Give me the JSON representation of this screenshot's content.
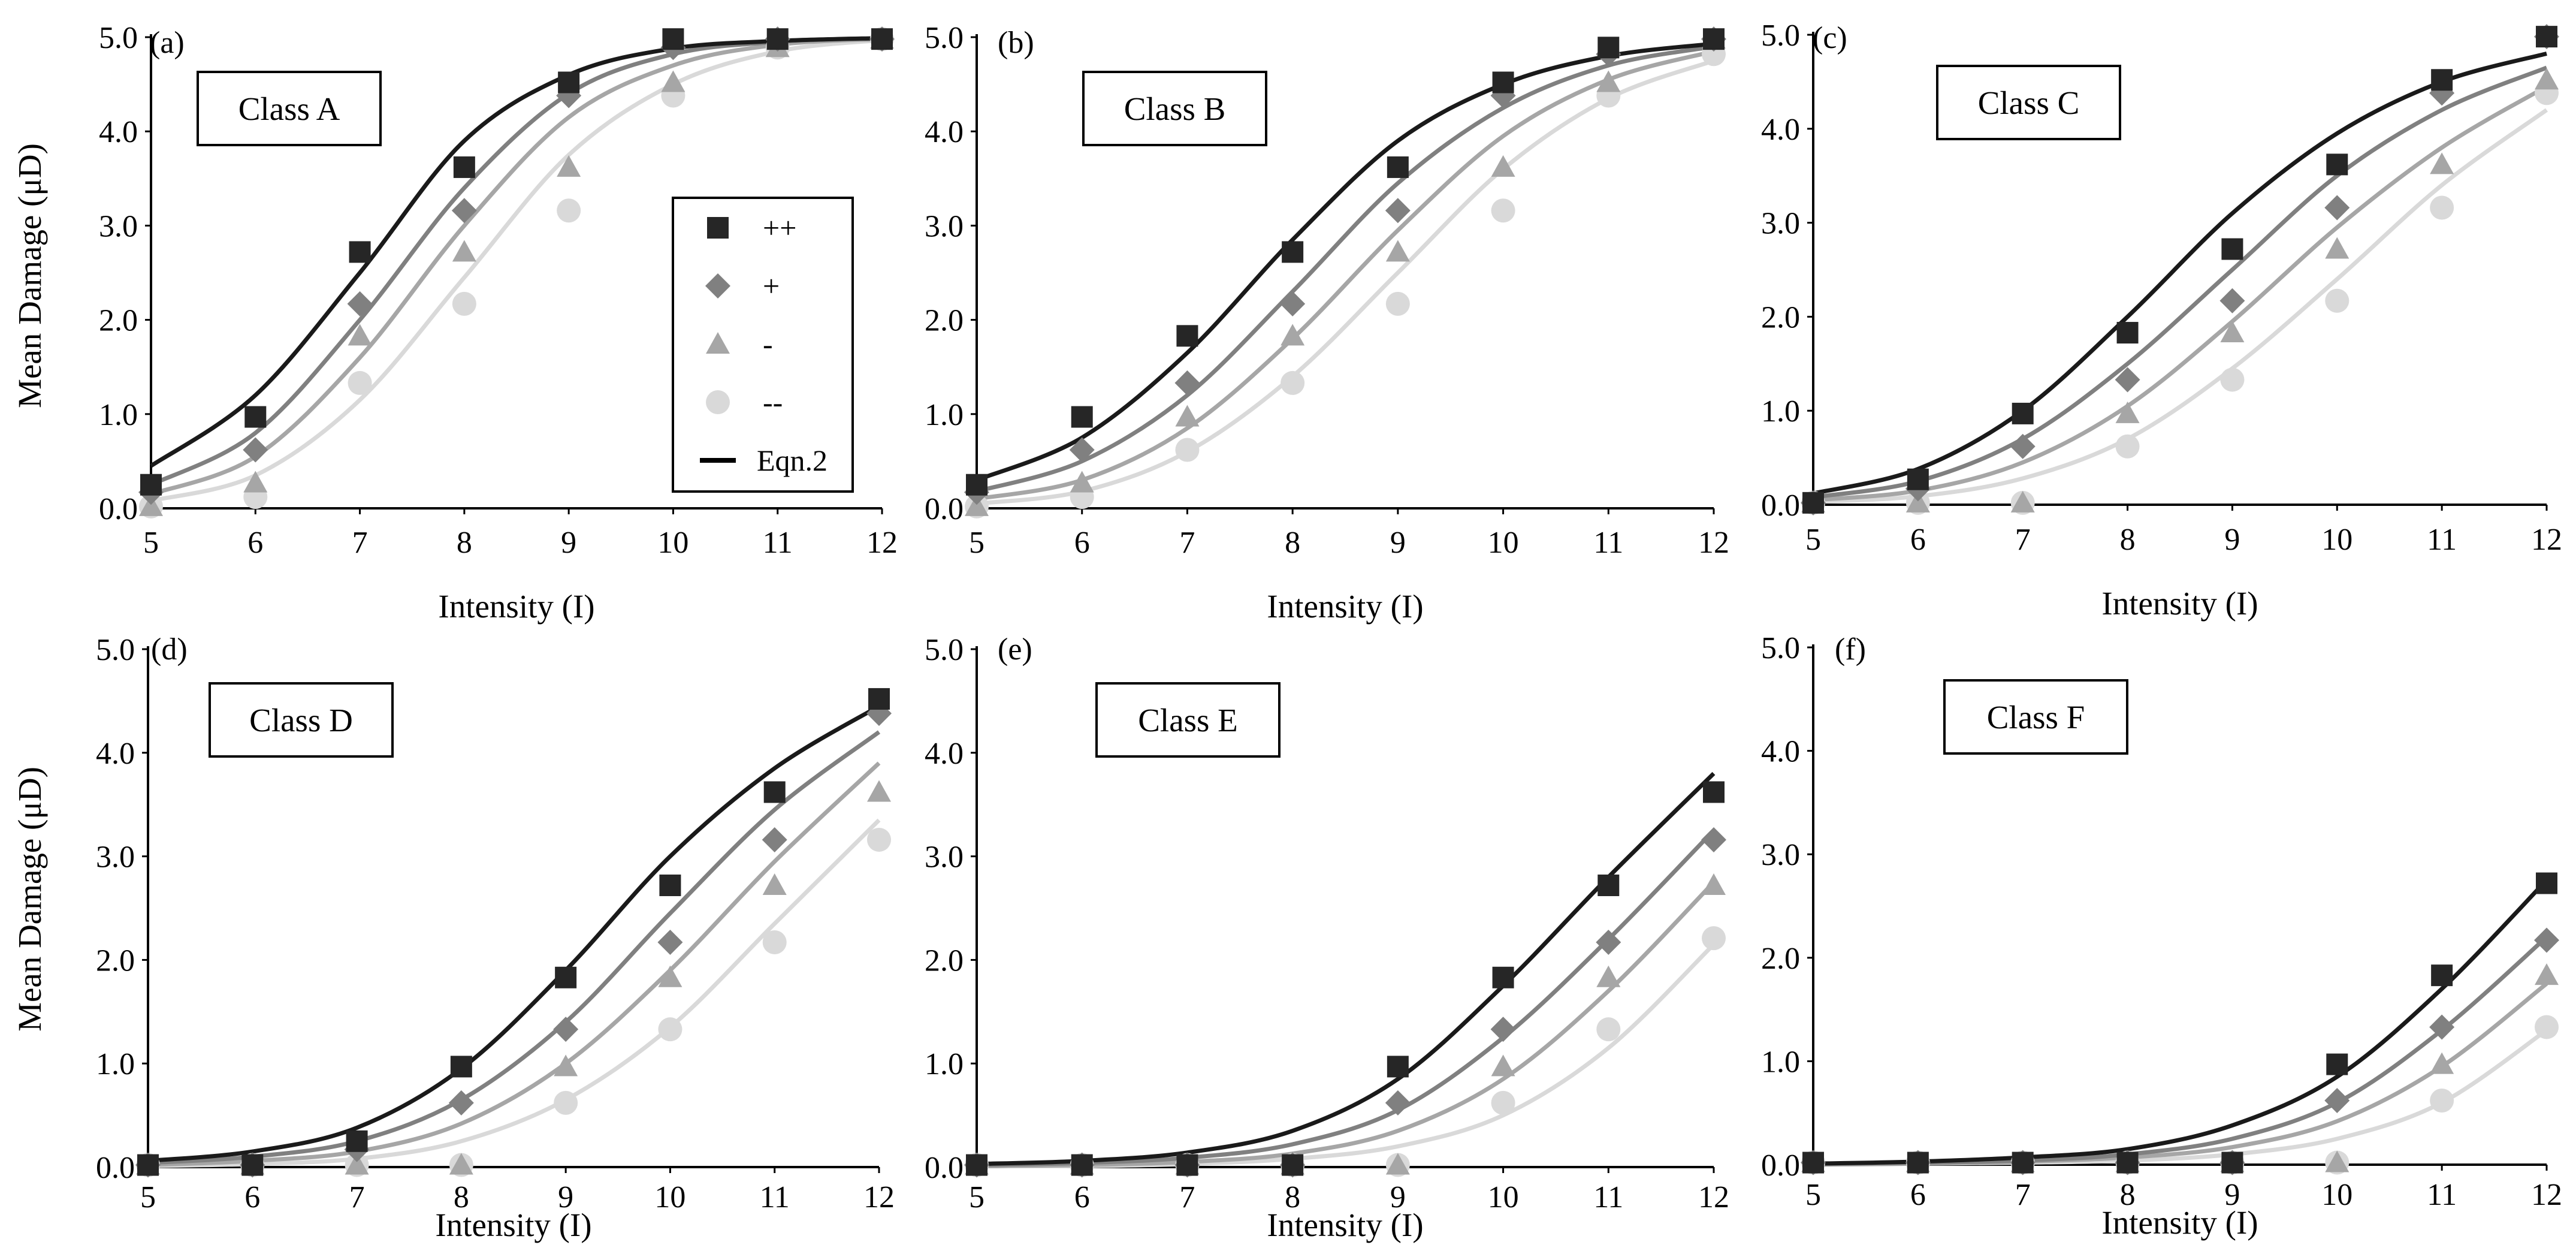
{
  "figure": {
    "x_axis_title": "Intensity (I)",
    "y_axis_title": "Mean Damage (μD)"
  },
  "legend": {
    "entries": [
      {
        "label": "++",
        "marker": "square",
        "color": "#262626"
      },
      {
        "label": "+",
        "marker": "diamond",
        "color": "#808080"
      },
      {
        "label": "-",
        "marker": "triangle",
        "color": "#a6a6a6"
      },
      {
        "label": "--",
        "marker": "circle",
        "color": "#d9d9d9"
      },
      {
        "label": "Eqn.2",
        "marker": "line",
        "color": "#000000"
      }
    ]
  },
  "colors": {
    "pp": "#262626",
    "p": "#808080",
    "m": "#a6a6a6",
    "mm": "#d9d9d9"
  },
  "chart_data": [
    {
      "type": "scatter",
      "panel": "(a)",
      "title": "Class A",
      "xlabel": "Intensity (I)",
      "ylabel": "Mean Damage (μD)",
      "x": [
        5,
        6,
        7,
        8,
        9,
        10,
        11,
        12
      ],
      "xlim": [
        5,
        12
      ],
      "ylim": [
        0,
        5
      ],
      "yticks": [
        "0.0",
        "1.0",
        "2.0",
        "3.0",
        "4.0",
        "5.0"
      ],
      "series": [
        {
          "name": "++",
          "marker": "square",
          "values": [
            0.25,
            0.97,
            2.72,
            3.62,
            4.52,
            4.98,
            4.98,
            4.98
          ],
          "curve": [
            0.45,
            1.2,
            2.5,
            3.9,
            4.6,
            4.88,
            4.96,
            4.99
          ]
        },
        {
          "name": "+",
          "marker": "diamond",
          "values": [
            0.17,
            0.62,
            2.17,
            3.16,
            4.38,
            4.89,
            4.98,
            4.98
          ],
          "curve": [
            0.25,
            0.8,
            2.0,
            3.4,
            4.4,
            4.82,
            4.95,
            4.99
          ]
        },
        {
          "name": "-",
          "marker": "triangle",
          "values": [
            0.02,
            0.27,
            1.83,
            2.72,
            3.62,
            4.52,
            4.89,
            4.98
          ],
          "curve": [
            0.15,
            0.55,
            1.6,
            3.0,
            4.15,
            4.7,
            4.92,
            4.98
          ]
        },
        {
          "name": "--",
          "marker": "circle",
          "values": [
            0.02,
            0.12,
            1.33,
            2.17,
            3.16,
            4.38,
            4.89,
            4.98
          ],
          "curve": [
            0.08,
            0.35,
            1.15,
            2.45,
            3.75,
            4.5,
            4.85,
            4.97
          ]
        }
      ]
    },
    {
      "type": "scatter",
      "panel": "(b)",
      "title": "Class B",
      "xlabel": "Intensity (I)",
      "ylabel": "",
      "x": [
        5,
        6,
        7,
        8,
        9,
        10,
        11,
        12
      ],
      "xlim": [
        5,
        12
      ],
      "ylim": [
        0,
        5
      ],
      "yticks": [
        "0.0",
        "1.0",
        "2.0",
        "3.0",
        "4.0",
        "5.0"
      ],
      "series": [
        {
          "name": "++",
          "marker": "square",
          "values": [
            0.25,
            0.97,
            1.83,
            2.72,
            3.62,
            4.52,
            4.89,
            4.98
          ],
          "curve": [
            0.3,
            0.75,
            1.65,
            2.85,
            3.9,
            4.5,
            4.8,
            4.93
          ]
        },
        {
          "name": "+",
          "marker": "diamond",
          "values": [
            0.17,
            0.62,
            1.33,
            2.17,
            3.16,
            4.38,
            4.82,
            4.98
          ],
          "curve": [
            0.18,
            0.5,
            1.2,
            2.3,
            3.45,
            4.25,
            4.7,
            4.9
          ]
        },
        {
          "name": "-",
          "marker": "triangle",
          "values": [
            0.02,
            0.27,
            0.97,
            1.83,
            2.72,
            3.62,
            4.52,
            4.98
          ],
          "curve": [
            0.1,
            0.3,
            0.85,
            1.8,
            2.95,
            3.95,
            4.55,
            4.85
          ]
        },
        {
          "name": "--",
          "marker": "circle",
          "values": [
            0.02,
            0.12,
            0.62,
            1.33,
            2.17,
            3.16,
            4.38,
            4.82
          ],
          "curve": [
            0.05,
            0.18,
            0.6,
            1.4,
            2.5,
            3.6,
            4.35,
            4.75
          ]
        }
      ]
    },
    {
      "type": "scatter",
      "panel": "(c)",
      "title": "Class C",
      "xlabel": "Intensity (I)",
      "ylabel": "",
      "x": [
        5,
        6,
        7,
        8,
        9,
        10,
        11,
        12
      ],
      "xlim": [
        5,
        12
      ],
      "ylim": [
        0,
        5
      ],
      "yticks": [
        "0.0",
        "1.0",
        "2.0",
        "3.0",
        "4.0",
        "5.0"
      ],
      "series": [
        {
          "name": "++",
          "marker": "square",
          "values": [
            0.02,
            0.27,
            0.97,
            1.83,
            2.72,
            3.62,
            4.52,
            4.98
          ],
          "curve": [
            0.12,
            0.38,
            1.0,
            2.0,
            3.1,
            3.95,
            4.5,
            4.8
          ]
        },
        {
          "name": "+",
          "marker": "diamond",
          "values": [
            0.02,
            0.17,
            0.62,
            1.33,
            2.17,
            3.16,
            4.38,
            4.98
          ],
          "curve": [
            0.08,
            0.25,
            0.7,
            1.5,
            2.5,
            3.5,
            4.2,
            4.65
          ]
        },
        {
          "name": "-",
          "marker": "triangle",
          "values": [
            0.02,
            0.02,
            0.02,
            0.97,
            1.83,
            2.72,
            3.62,
            4.52
          ],
          "curve": [
            0.05,
            0.15,
            0.45,
            1.05,
            1.95,
            2.95,
            3.8,
            4.45
          ]
        },
        {
          "name": "--",
          "marker": "circle",
          "values": [
            0.02,
            0.02,
            0.02,
            0.62,
            1.33,
            2.17,
            3.16,
            4.38
          ],
          "curve": [
            0.03,
            0.09,
            0.28,
            0.7,
            1.45,
            2.4,
            3.4,
            4.2
          ]
        }
      ]
    },
    {
      "type": "scatter",
      "panel": "(d)",
      "title": "Class D",
      "xlabel": "Intensity (I)",
      "ylabel": "Mean Damage (μD)",
      "x": [
        5,
        6,
        7,
        8,
        9,
        10,
        11,
        12
      ],
      "xlim": [
        5,
        12
      ],
      "ylim": [
        0,
        5
      ],
      "yticks": [
        "0.0",
        "1.0",
        "2.0",
        "3.0",
        "4.0",
        "5.0"
      ],
      "series": [
        {
          "name": "++",
          "marker": "square",
          "values": [
            0.02,
            0.02,
            0.25,
            0.97,
            1.83,
            2.72,
            3.62,
            4.52
          ],
          "curve": [
            0.06,
            0.15,
            0.38,
            0.95,
            1.9,
            3.0,
            3.85,
            4.45
          ]
        },
        {
          "name": "+",
          "marker": "diamond",
          "values": [
            0.02,
            0.02,
            0.17,
            0.62,
            1.33,
            2.17,
            3.16,
            4.38
          ],
          "curve": [
            0.04,
            0.1,
            0.25,
            0.65,
            1.4,
            2.45,
            3.45,
            4.2
          ]
        },
        {
          "name": "-",
          "marker": "triangle",
          "values": [
            0.02,
            0.02,
            0.02,
            0.02,
            0.97,
            1.83,
            2.72,
            3.62
          ],
          "curve": [
            0.02,
            0.06,
            0.15,
            0.42,
            1.0,
            1.9,
            2.95,
            3.9
          ]
        },
        {
          "name": "--",
          "marker": "circle",
          "values": [
            0.02,
            0.02,
            0.02,
            0.02,
            0.62,
            1.33,
            2.17,
            3.16
          ],
          "curve": [
            0.01,
            0.03,
            0.08,
            0.25,
            0.65,
            1.35,
            2.35,
            3.35
          ]
        }
      ]
    },
    {
      "type": "scatter",
      "panel": "(e)",
      "title": "Class E",
      "xlabel": "Intensity (I)",
      "ylabel": "",
      "x": [
        5,
        6,
        7,
        8,
        9,
        10,
        11,
        12
      ],
      "xlim": [
        5,
        12
      ],
      "ylim": [
        0,
        5
      ],
      "yticks": [
        "0.0",
        "1.0",
        "2.0",
        "3.0",
        "4.0",
        "5.0"
      ],
      "series": [
        {
          "name": "++",
          "marker": "square",
          "values": [
            0.02,
            0.02,
            0.02,
            0.02,
            0.97,
            1.83,
            2.72,
            3.62
          ],
          "curve": [
            0.03,
            0.06,
            0.14,
            0.35,
            0.85,
            1.75,
            2.8,
            3.8
          ]
        },
        {
          "name": "+",
          "marker": "diamond",
          "values": [
            0.02,
            0.02,
            0.02,
            0.02,
            0.62,
            1.33,
            2.17,
            3.16
          ],
          "curve": [
            0.02,
            0.04,
            0.09,
            0.22,
            0.55,
            1.25,
            2.2,
            3.25
          ]
        },
        {
          "name": "-",
          "marker": "triangle",
          "values": [
            0.02,
            0.02,
            0.02,
            0.02,
            0.02,
            0.97,
            1.83,
            2.72
          ],
          "curve": [
            0.01,
            0.02,
            0.05,
            0.13,
            0.35,
            0.85,
            1.7,
            2.75
          ]
        },
        {
          "name": "--",
          "marker": "circle",
          "values": [
            0.02,
            0.02,
            0.02,
            0.02,
            0.02,
            0.62,
            1.33,
            2.21
          ],
          "curve": [
            0.01,
            0.01,
            0.03,
            0.08,
            0.2,
            0.5,
            1.15,
            2.15
          ]
        }
      ]
    },
    {
      "type": "scatter",
      "panel": "(f)",
      "title": "Class F",
      "xlabel": "Intensity (I)",
      "ylabel": "",
      "x": [
        5,
        6,
        7,
        8,
        9,
        10,
        11,
        12
      ],
      "xlim": [
        5,
        12
      ],
      "ylim": [
        0,
        5
      ],
      "yticks": [
        "0.0",
        "1.0",
        "2.0",
        "3.0",
        "4.0",
        "5.0"
      ],
      "series": [
        {
          "name": "++",
          "marker": "square",
          "values": [
            0.02,
            0.02,
            0.02,
            0.02,
            0.02,
            0.97,
            1.83,
            2.72
          ],
          "curve": [
            0.01,
            0.03,
            0.07,
            0.15,
            0.38,
            0.85,
            1.7,
            2.75
          ]
        },
        {
          "name": "+",
          "marker": "diamond",
          "values": [
            0.02,
            0.02,
            0.02,
            0.02,
            0.02,
            0.62,
            1.33,
            2.17
          ],
          "curve": [
            0.01,
            0.02,
            0.04,
            0.1,
            0.25,
            0.6,
            1.3,
            2.2
          ]
        },
        {
          "name": "-",
          "marker": "triangle",
          "values": [
            0.02,
            0.02,
            0.02,
            0.02,
            0.02,
            0.02,
            0.97,
            1.83
          ],
          "curve": [
            0.0,
            0.01,
            0.03,
            0.07,
            0.17,
            0.42,
            0.95,
            1.75
          ]
        },
        {
          "name": "--",
          "marker": "circle",
          "values": [
            0.02,
            0.02,
            0.02,
            0.02,
            0.02,
            0.02,
            0.62,
            1.33
          ],
          "curve": [
            0.0,
            0.01,
            0.02,
            0.04,
            0.1,
            0.25,
            0.6,
            1.3
          ]
        }
      ]
    }
  ]
}
